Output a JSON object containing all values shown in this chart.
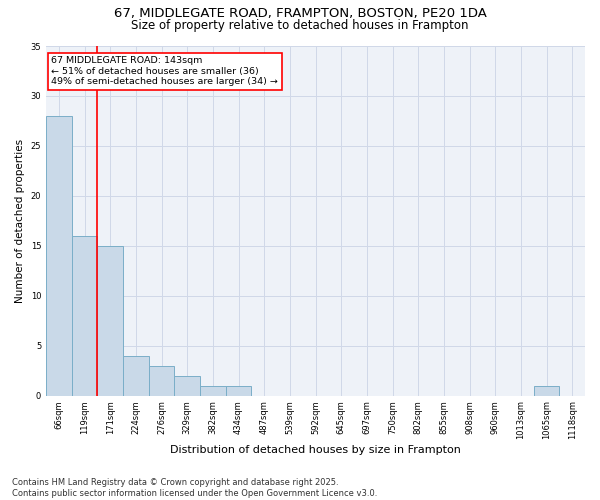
{
  "title": "67, MIDDLEGATE ROAD, FRAMPTON, BOSTON, PE20 1DA",
  "subtitle": "Size of property relative to detached houses in Frampton",
  "xlabel": "Distribution of detached houses by size in Frampton",
  "ylabel": "Number of detached properties",
  "bar_labels": [
    "66sqm",
    "119sqm",
    "171sqm",
    "224sqm",
    "276sqm",
    "329sqm",
    "382sqm",
    "434sqm",
    "487sqm",
    "539sqm",
    "592sqm",
    "645sqm",
    "697sqm",
    "750sqm",
    "802sqm",
    "855sqm",
    "908sqm",
    "960sqm",
    "1013sqm",
    "1065sqm",
    "1118sqm"
  ],
  "bar_values": [
    28,
    16,
    15,
    4,
    3,
    2,
    1,
    1,
    0,
    0,
    0,
    0,
    0,
    0,
    0,
    0,
    0,
    0,
    0,
    1,
    0
  ],
  "bar_color": "#c9d9e8",
  "bar_edge_color": "#7aaec8",
  "vline_color": "red",
  "vline_x": 1.5,
  "annotation_text": "67 MIDDLEGATE ROAD: 143sqm\n← 51% of detached houses are smaller (36)\n49% of semi-detached houses are larger (34) →",
  "annotation_box_color": "white",
  "annotation_box_edge": "red",
  "ylim": [
    0,
    35
  ],
  "yticks": [
    0,
    5,
    10,
    15,
    20,
    25,
    30,
    35
  ],
  "grid_color": "#d0d8e8",
  "bg_color": "#eef2f8",
  "footer": "Contains HM Land Registry data © Crown copyright and database right 2025.\nContains public sector information licensed under the Open Government Licence v3.0.",
  "title_fontsize": 9.5,
  "subtitle_fontsize": 8.5,
  "annotation_fontsize": 6.8,
  "footer_fontsize": 6.0,
  "ylabel_fontsize": 7.5,
  "xlabel_fontsize": 8.0,
  "tick_fontsize": 6.0
}
